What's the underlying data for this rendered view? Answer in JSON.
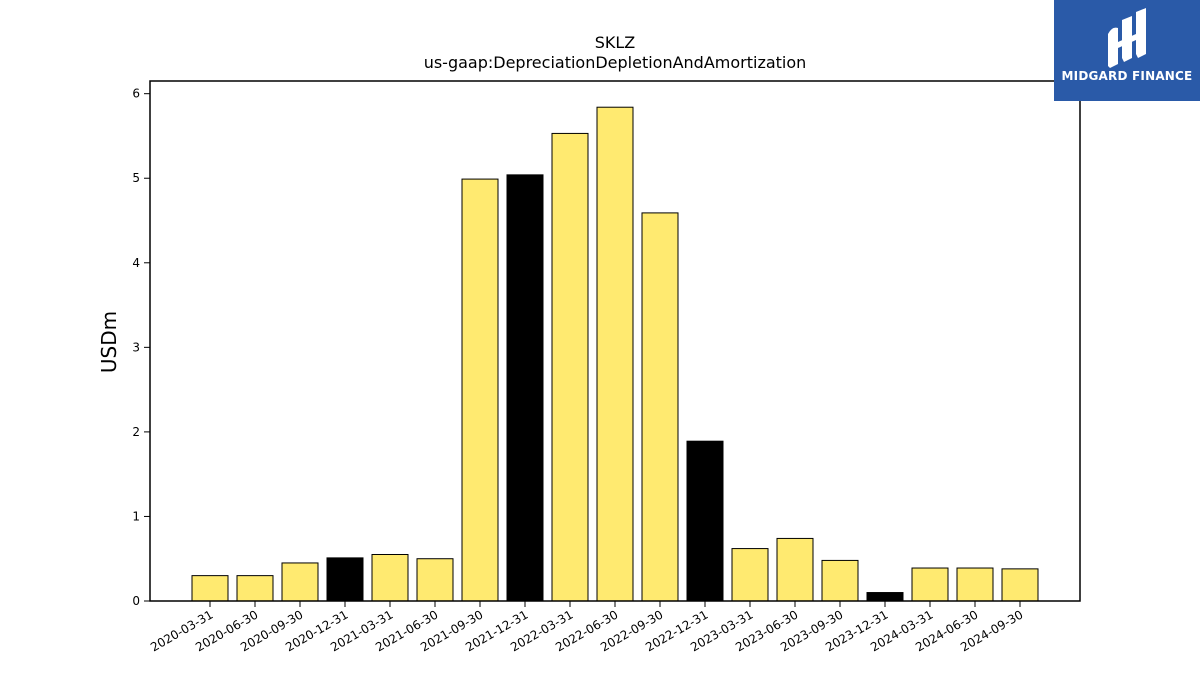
{
  "logo": {
    "text": "MIDGARD FINANCE",
    "background": "#2a5aa8"
  },
  "chart_data": {
    "type": "bar",
    "title": "SKLZ",
    "subtitle": "us-gaap:DepreciationDepletionAndAmortization",
    "xlabel": "",
    "ylabel": "USDm",
    "ylim": [
      0,
      6.15
    ],
    "yticks": [
      0,
      1,
      2,
      3,
      4,
      5,
      6
    ],
    "grid": false,
    "categories": [
      "2020-03-31",
      "2020-06-30",
      "2020-09-30",
      "2020-12-31",
      "2021-03-31",
      "2021-06-30",
      "2021-09-30",
      "2021-12-31",
      "2022-03-31",
      "2022-06-30",
      "2022-09-30",
      "2022-12-31",
      "2023-03-31",
      "2023-06-30",
      "2023-09-30",
      "2023-12-31",
      "2024-03-31",
      "2024-06-30",
      "2024-09-30"
    ],
    "values": [
      0.3,
      0.3,
      0.45,
      0.51,
      0.55,
      0.5,
      4.99,
      5.04,
      5.53,
      5.84,
      4.59,
      1.89,
      0.62,
      0.74,
      0.48,
      0.1,
      0.39,
      0.39,
      0.38
    ],
    "colors": [
      "#ffea70",
      "#ffea70",
      "#ffea70",
      "#000000",
      "#ffea70",
      "#ffea70",
      "#ffea70",
      "#000000",
      "#ffea70",
      "#ffea70",
      "#ffea70",
      "#000000",
      "#ffea70",
      "#ffea70",
      "#ffea70",
      "#000000",
      "#ffea70",
      "#ffea70",
      "#ffea70"
    ]
  }
}
